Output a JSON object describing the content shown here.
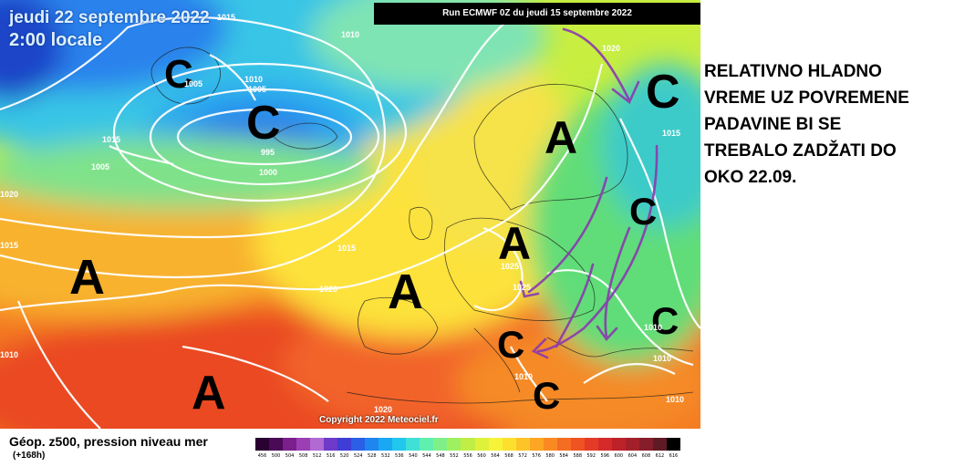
{
  "header": {
    "date": "jeudi 22 septembre 2022",
    "time": "2:00 locale",
    "run": "Run ECMWF 0Z du jeudi 15 septembre 2022",
    "copyright": "Copyright 2022 Meteociel.fr"
  },
  "side_text": [
    "RELATIVNO HLADNO",
    "VREME UZ POVREMENE",
    "PADAVINE BI SE",
    "TREBALO ZADŽATI DO",
    "OKO 22.09."
  ],
  "footer": {
    "title": "Géop. z500, pression niveau mer",
    "subtitle": "(+168h)"
  },
  "scale": {
    "labels": [
      "456",
      "500",
      "504",
      "508",
      "512",
      "516",
      "520",
      "524",
      "528",
      "532",
      "536",
      "540",
      "544",
      "548",
      "552",
      "556",
      "560",
      "564",
      "568",
      "572",
      "576",
      "580",
      "584",
      "588",
      "592",
      "596",
      "600",
      "604",
      "608",
      "612",
      "616"
    ],
    "colors": [
      "#2a0030",
      "#4b0a57",
      "#7a1f8c",
      "#9b3fb5",
      "#b06ad1",
      "#6d3ac9",
      "#3e3ed6",
      "#2b5fe6",
      "#1f86f0",
      "#1aa8f3",
      "#22c7ee",
      "#3fe0d6",
      "#5ff0b0",
      "#7ff088",
      "#9ef061",
      "#c0ee44",
      "#dff23a",
      "#f7f23a",
      "#fde02e",
      "#fdc428",
      "#fca624",
      "#f98a22",
      "#f46d22",
      "#ef5223",
      "#e43b27",
      "#d42a2a",
      "#be2229",
      "#a3202b",
      "#861d2b",
      "#5e1a25",
      "#000000"
    ]
  },
  "pressure_letters": [
    {
      "letter": "C",
      "kind": "low"
    },
    {
      "letter": "C",
      "kind": "low"
    },
    {
      "letter": "C",
      "kind": "low"
    },
    {
      "letter": "C",
      "kind": "low"
    },
    {
      "letter": "C",
      "kind": "low"
    },
    {
      "letter": "C",
      "kind": "low"
    },
    {
      "letter": "C",
      "kind": "low"
    },
    {
      "letter": "A",
      "kind": "high"
    },
    {
      "letter": "A",
      "kind": "high"
    },
    {
      "letter": "A",
      "kind": "high"
    },
    {
      "letter": "A",
      "kind": "high"
    },
    {
      "letter": "A",
      "kind": "high"
    }
  ],
  "isobar_labels": [
    "1015",
    "1010",
    "1005",
    "1015",
    "1010",
    "1005",
    "995",
    "1000",
    "1005",
    "1015",
    "1020",
    "1025",
    "1025",
    "1020",
    "1015",
    "1010",
    "1010",
    "1010",
    "1020",
    "1010",
    "1010",
    "1020",
    "1015"
  ]
}
